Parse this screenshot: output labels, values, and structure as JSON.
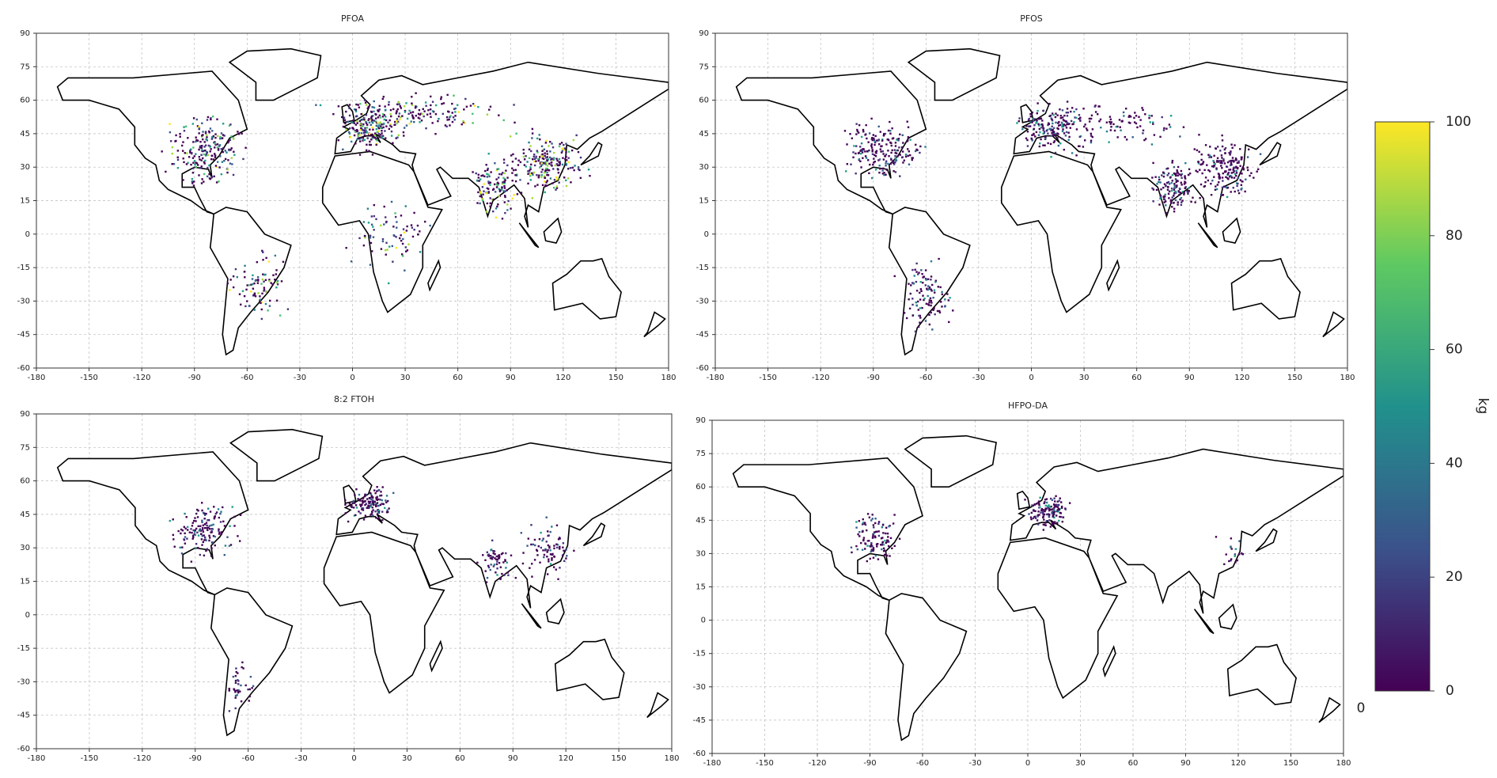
{
  "chart_data": [
    {
      "type": "map",
      "title": "PFOA",
      "xlim": [
        -180,
        180
      ],
      "ylim": [
        -60,
        90
      ],
      "xticks": [
        -180,
        -150,
        -120,
        -90,
        -60,
        -30,
        0,
        30,
        60,
        90,
        120,
        150,
        180
      ],
      "yticks": [
        -60,
        -45,
        -30,
        -15,
        0,
        15,
        30,
        45,
        60,
        75,
        90
      ],
      "grid": true
    },
    {
      "type": "map",
      "title": "PFOS",
      "xlim": [
        -180,
        180
      ],
      "ylim": [
        -60,
        90
      ],
      "xticks": [
        -180,
        -150,
        -120,
        -90,
        -60,
        -30,
        0,
        30,
        60,
        90,
        120,
        150,
        180
      ],
      "yticks": [
        -60,
        -45,
        -30,
        -15,
        0,
        15,
        30,
        45,
        60,
        75,
        90
      ],
      "grid": true
    },
    {
      "type": "map",
      "title": "8:2 FTOH",
      "xlim": [
        -180,
        180
      ],
      "ylim": [
        -60,
        90
      ],
      "xticks": [
        -180,
        -150,
        -120,
        -90,
        -60,
        -30,
        0,
        30,
        60,
        90,
        120,
        150,
        180
      ],
      "yticks": [
        -60,
        -45,
        -30,
        -15,
        0,
        15,
        30,
        45,
        60,
        75,
        90
      ],
      "grid": true
    },
    {
      "type": "map",
      "title": "HFPO-DA",
      "xlim": [
        -180,
        180
      ],
      "ylim": [
        -60,
        90
      ],
      "xticks": [
        -180,
        -150,
        -120,
        -90,
        -60,
        -30,
        0,
        30,
        60,
        90,
        120,
        150,
        180
      ],
      "yticks": [
        -60,
        -45,
        -30,
        -15,
        0,
        15,
        30,
        45,
        60,
        75,
        90
      ],
      "grid": true
    }
  ],
  "colorbar": {
    "label": "kg",
    "lim": [
      0,
      100
    ],
    "ticks": [
      0,
      20,
      40,
      60,
      80,
      100
    ],
    "colors": [
      "#440154",
      "#3b528b",
      "#21918c",
      "#5ec962",
      "#fde725"
    ],
    "note": "0"
  }
}
